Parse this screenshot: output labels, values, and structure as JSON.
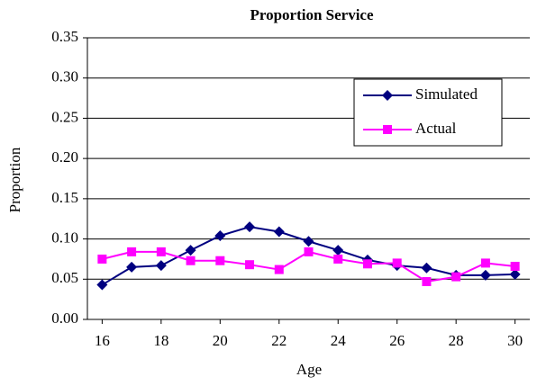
{
  "chart_data": {
    "type": "line",
    "title": "Proportion Service",
    "x_label": "Age",
    "y_label": "Proportion",
    "x": [
      16,
      17,
      18,
      19,
      20,
      21,
      22,
      23,
      24,
      25,
      26,
      27,
      28,
      29,
      30
    ],
    "series": [
      {
        "name": "Simulated",
        "color": "#000080",
        "marker": "diamond",
        "values": [
          0.043,
          0.065,
          0.067,
          0.086,
          0.104,
          0.115,
          0.109,
          0.097,
          0.086,
          0.074,
          0.067,
          0.064,
          0.055,
          0.055,
          0.056
        ]
      },
      {
        "name": "Actual",
        "color": "#ff00ff",
        "marker": "square",
        "values": [
          0.075,
          0.084,
          0.084,
          0.073,
          0.073,
          0.068,
          0.062,
          0.084,
          0.075,
          0.069,
          0.07,
          0.047,
          0.053,
          0.07,
          0.066
        ]
      }
    ],
    "xlim": [
      15.5,
      30.5
    ],
    "xticks": [
      16,
      18,
      20,
      22,
      24,
      26,
      28,
      30
    ],
    "ylim": [
      0,
      0.35
    ],
    "yticks": [
      {
        "value": 0,
        "label": "0.00"
      },
      {
        "value": 0.05,
        "label": "0.05"
      },
      {
        "value": 0.1,
        "label": "0.10"
      },
      {
        "value": 0.15,
        "label": "0.15"
      },
      {
        "value": 0.2,
        "label": "0.20"
      },
      {
        "value": 0.25,
        "label": "0.25"
      },
      {
        "value": 0.3,
        "label": "0.30"
      },
      {
        "value": 0.35,
        "label": "0.35"
      }
    ],
    "grid": true,
    "legend": "upper right"
  }
}
